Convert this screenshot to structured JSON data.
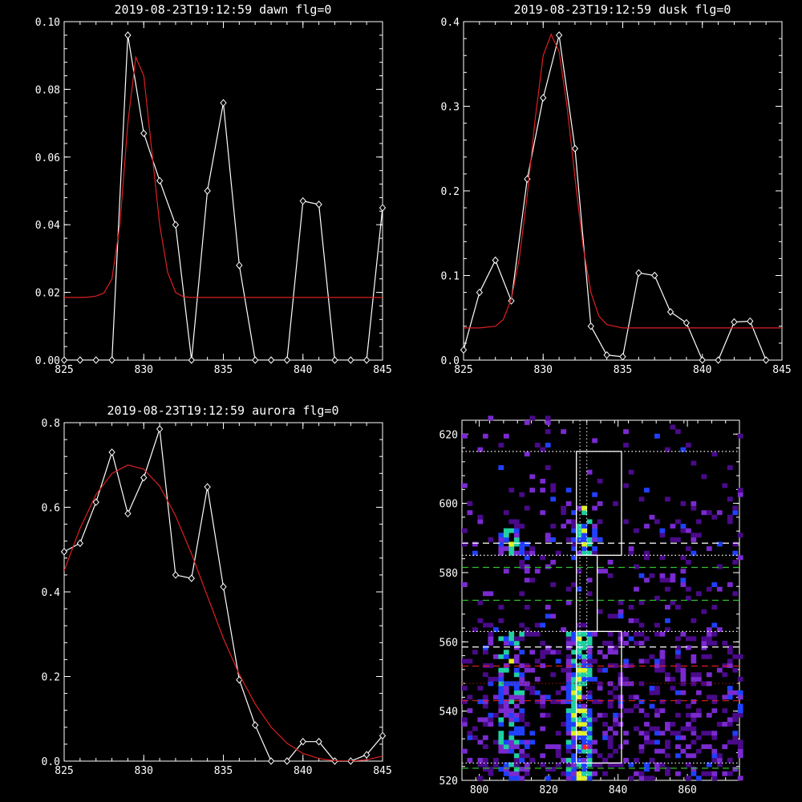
{
  "chart_data": [
    {
      "type": "line",
      "title": "2019-08-23T19:12:59 dawn flg=0",
      "xlim": [
        825,
        845
      ],
      "ylim": [
        0,
        0.1
      ],
      "x_ticks": [
        "825",
        "830",
        "835",
        "840",
        "845"
      ],
      "y_ticks": [
        "0.00",
        "0.02",
        "0.04",
        "0.06",
        "0.08",
        "0.10"
      ],
      "series": [
        {
          "style": "white-line-diamonds",
          "color": "#ffffff",
          "x": [
            825,
            826,
            827,
            828,
            829,
            830,
            831,
            832,
            833,
            834,
            835,
            836,
            837,
            838,
            839,
            840,
            841,
            842,
            843,
            844,
            845
          ],
          "y": [
            0,
            0,
            0,
            0,
            0.096,
            0.067,
            0.053,
            0.04,
            0,
            0.05,
            0.076,
            0.028,
            0,
            0,
            0,
            0.047,
            0.046,
            0,
            0,
            0,
            0.045
          ]
        },
        {
          "style": "red-gaussian-fit",
          "color": "#dd2020",
          "x": [
            825,
            826,
            826.5,
            827,
            827.5,
            828,
            828.5,
            829,
            829.5,
            830,
            830.5,
            831,
            831.5,
            832,
            832.5,
            833,
            834,
            836,
            840,
            845
          ],
          "y": [
            0.0185,
            0.0185,
            0.0186,
            0.0189,
            0.0198,
            0.024,
            0.04,
            0.07,
            0.0895,
            0.084,
            0.062,
            0.04,
            0.026,
            0.02,
            0.0187,
            0.0185,
            0.0185,
            0.0185,
            0.0185,
            0.0185
          ]
        }
      ]
    },
    {
      "type": "line",
      "title": "2019-08-23T19:12:59 dusk flg=0",
      "xlim": [
        825,
        845
      ],
      "ylim": [
        0,
        0.4
      ],
      "x_ticks": [
        "825",
        "830",
        "835",
        "840",
        "845"
      ],
      "y_ticks": [
        "0.0",
        "0.1",
        "0.2",
        "0.3",
        "0.4"
      ],
      "series": [
        {
          "style": "white-line-diamonds",
          "color": "#ffffff",
          "x": [
            825,
            826,
            827,
            828,
            829,
            830,
            831,
            832,
            833,
            834,
            835,
            836,
            837,
            838,
            839,
            840,
            841,
            842,
            843,
            844
          ],
          "y": [
            0.012,
            0.08,
            0.118,
            0.07,
            0.214,
            0.31,
            0.384,
            0.25,
            0.04,
            0.006,
            0.004,
            0.103,
            0.1,
            0.057,
            0.044,
            0,
            0,
            0.045,
            0.046,
            0
          ]
        },
        {
          "style": "red-gaussian-fit",
          "color": "#dd2020",
          "x": [
            825,
            826,
            827,
            827.5,
            828,
            828.5,
            829,
            829.5,
            830,
            830.5,
            831,
            831.5,
            832,
            832.5,
            833,
            833.5,
            834,
            835,
            836,
            840,
            845
          ],
          "y": [
            0.038,
            0.038,
            0.04,
            0.048,
            0.072,
            0.12,
            0.195,
            0.285,
            0.36,
            0.385,
            0.365,
            0.3,
            0.215,
            0.135,
            0.08,
            0.052,
            0.042,
            0.038,
            0.038,
            0.038,
            0.038
          ]
        }
      ]
    },
    {
      "type": "line",
      "title": "2019-08-23T19:12:59 aurora flg=0",
      "xlim": [
        825,
        845
      ],
      "ylim": [
        0,
        0.8
      ],
      "x_ticks": [
        "825",
        "830",
        "835",
        "840",
        "845"
      ],
      "y_ticks": [
        "0.0",
        "0.2",
        "0.4",
        "0.6",
        "0.8"
      ],
      "series": [
        {
          "style": "white-line-diamonds",
          "color": "#ffffff",
          "x": [
            825,
            826,
            827,
            828,
            829,
            830,
            831,
            832,
            833,
            834,
            835,
            836,
            837,
            838,
            839,
            840,
            841,
            842,
            843,
            844,
            845
          ],
          "y": [
            0.495,
            0.515,
            0.612,
            0.73,
            0.585,
            0.67,
            0.785,
            0.44,
            0.432,
            0.648,
            0.412,
            0.192,
            0.085,
            0,
            0,
            0.046,
            0.046,
            0,
            0,
            0.015,
            0.06
          ]
        },
        {
          "style": "red-gaussian-fit",
          "color": "#dd2020",
          "x": [
            825,
            826,
            827,
            828,
            829,
            830,
            831,
            832,
            833,
            834,
            835,
            836,
            837,
            838,
            839,
            840,
            841,
            842,
            843,
            844,
            845
          ],
          "y": [
            0.45,
            0.55,
            0.63,
            0.68,
            0.7,
            0.69,
            0.65,
            0.58,
            0.49,
            0.39,
            0.29,
            0.205,
            0.135,
            0.08,
            0.042,
            0.018,
            0.006,
            0.001,
            0,
            0.003,
            0.012
          ]
        }
      ]
    },
    {
      "type": "heatmap",
      "title": "",
      "xlim": [
        795,
        875
      ],
      "ylim": [
        520,
        624
      ],
      "x_ticks": [
        "800",
        "820",
        "840",
        "860"
      ],
      "y_ticks": [
        "520",
        "540",
        "560",
        "580",
        "600",
        "620"
      ],
      "colors": {
        "low": "#4a0a8a",
        "mid_low": "#7a2ad0",
        "mid": "#2040ff",
        "high": "#20d0a0",
        "very_high": "#e0f020",
        "peak": "#ff2020"
      },
      "hot_columns": [
        {
          "x_center": 808,
          "y_from": 520,
          "y_to": 562,
          "intensity": 0.75
        },
        {
          "x_center": 828,
          "y_from": 520,
          "y_to": 562,
          "intensity": 1.0
        },
        {
          "x_center": 830,
          "y_from": 584,
          "y_to": 598,
          "intensity": 0.7
        },
        {
          "x_center": 808,
          "y_from": 584,
          "y_to": 592,
          "intensity": 0.65
        }
      ],
      "peak_pixel": {
        "x": 830,
        "y": 529
      },
      "boxes": [
        {
          "x0": 828,
          "x1": 841,
          "y0": 525,
          "y1": 563,
          "color": "#ffffff"
        },
        {
          "x0": 828,
          "x1": 834,
          "y0": 563,
          "y1": 585,
          "color": "#ffffff"
        },
        {
          "x0": 828,
          "x1": 841,
          "y0": 585,
          "y1": 615,
          "color": "#ffffff"
        }
      ],
      "hlines": [
        {
          "y": 615,
          "color": "#ffffff",
          "style": "dotted"
        },
        {
          "y": 588.5,
          "color": "#ffffff",
          "style": "dashed"
        },
        {
          "y": 585,
          "color": "#ffffff",
          "style": "dotted"
        },
        {
          "y": 581.5,
          "color": "#30c030",
          "style": "dashed"
        },
        {
          "y": 572,
          "color": "#30c030",
          "style": "dashed"
        },
        {
          "y": 563,
          "color": "#ffffff",
          "style": "dotted"
        },
        {
          "y": 558.5,
          "color": "#ffffff",
          "style": "dashed"
        },
        {
          "y": 553,
          "color": "#dd2020",
          "style": "dashed"
        },
        {
          "y": 548,
          "color": "#8a1010",
          "style": "dotted"
        },
        {
          "y": 543,
          "color": "#dd2020",
          "style": "dashed"
        },
        {
          "y": 525,
          "color": "#ffffff",
          "style": "dotted"
        },
        {
          "y": 523.5,
          "color": "#30c030",
          "style": "dashed"
        }
      ],
      "vlines": [
        {
          "x": 829,
          "color": "#ffffff",
          "style": "dotted"
        },
        {
          "x": 831,
          "color": "#ffffff",
          "style": "dotted"
        }
      ]
    }
  ]
}
